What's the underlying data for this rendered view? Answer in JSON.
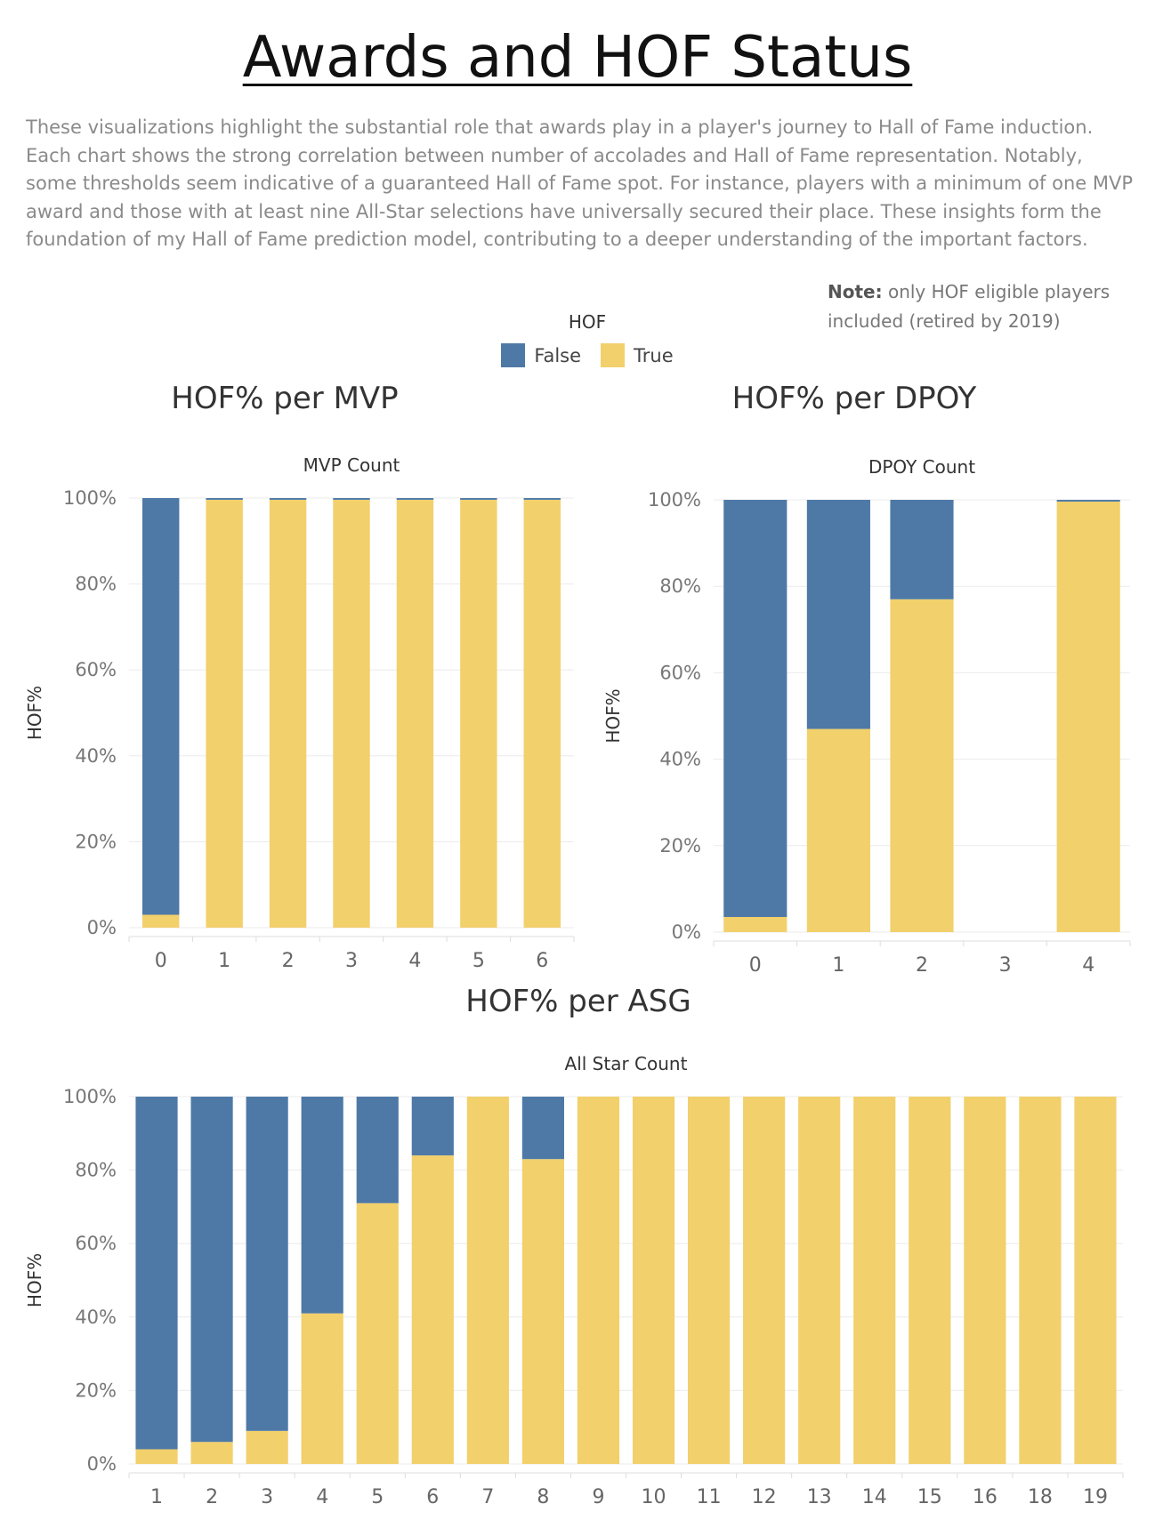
{
  "page": {
    "title": "Awards and HOF Status",
    "description": "These visualizations highlight the substantial role that awards play in a player's journey to Hall of Fame induction. Each chart shows the strong correlation between number of accolades and Hall of Fame representation. Notably, some thresholds seem indicative of a guaranteed Hall of Fame spot. For instance, players with a minimum of one MVP award and those with at least nine All-Star selections have universally secured their place. These insights form the foundation of my Hall of Fame prediction model, contributing to a deeper understanding of the  important factors.",
    "note_label": "Note:",
    "note_text": " only HOF eligible players included (retired by 2019)"
  },
  "legend": {
    "title": "HOF",
    "items": [
      {
        "label": "False",
        "color": "#4e79a7"
      },
      {
        "label": "True",
        "color": "#f2d06b"
      }
    ]
  },
  "chart_data": [
    {
      "type": "bar",
      "stacked": true,
      "heading": "HOF% per MVP",
      "xlabel": "MVP Count",
      "ylabel": "HOF%",
      "ylim": [
        0,
        100
      ],
      "yticks": [
        "0%",
        "20%",
        "40%",
        "60%",
        "80%",
        "100%"
      ],
      "grid": true,
      "categories": [
        "0",
        "1",
        "2",
        "3",
        "4",
        "5",
        "6"
      ],
      "series": [
        {
          "name": "True",
          "color": "#f2d06b",
          "values": [
            3,
            99.6,
            99.6,
            99.6,
            99.6,
            99.6,
            99.6
          ]
        },
        {
          "name": "False",
          "color": "#4e79a7",
          "values": [
            97,
            0.4,
            0.4,
            0.4,
            0.4,
            0.4,
            0.4
          ]
        }
      ]
    },
    {
      "type": "bar",
      "stacked": true,
      "heading": "HOF% per DPOY",
      "xlabel": "DPOY Count",
      "ylabel": "HOF%",
      "ylim": [
        0,
        100
      ],
      "yticks": [
        "0%",
        "20%",
        "40%",
        "60%",
        "80%",
        "100%"
      ],
      "grid": true,
      "categories": [
        "0",
        "1",
        "2",
        "3",
        "4"
      ],
      "series": [
        {
          "name": "True",
          "color": "#f2d06b",
          "values": [
            3.5,
            47,
            77,
            0,
            99.6
          ]
        },
        {
          "name": "False",
          "color": "#4e79a7",
          "values": [
            96.5,
            53,
            23,
            0,
            0.4
          ]
        }
      ]
    },
    {
      "type": "bar",
      "stacked": true,
      "heading": "HOF% per ASG",
      "xlabel": "All Star Count",
      "ylabel": "HOF%",
      "ylim": [
        0,
        100
      ],
      "yticks": [
        "0%",
        "20%",
        "40%",
        "60%",
        "80%",
        "100%"
      ],
      "grid": true,
      "categories": [
        "1",
        "2",
        "3",
        "4",
        "5",
        "6",
        "7",
        "8",
        "9",
        "10",
        "11",
        "12",
        "13",
        "14",
        "15",
        "16",
        "18",
        "19"
      ],
      "series": [
        {
          "name": "True",
          "color": "#f2d06b",
          "values": [
            4,
            6,
            9,
            41,
            71,
            84,
            100,
            83,
            100,
            100,
            100,
            100,
            100,
            100,
            100,
            100,
            100,
            100
          ]
        },
        {
          "name": "False",
          "color": "#4e79a7",
          "values": [
            96,
            94,
            91,
            59,
            29,
            16,
            0,
            17,
            0,
            0,
            0,
            0,
            0,
            0,
            0,
            0,
            0,
            0
          ]
        }
      ]
    }
  ]
}
